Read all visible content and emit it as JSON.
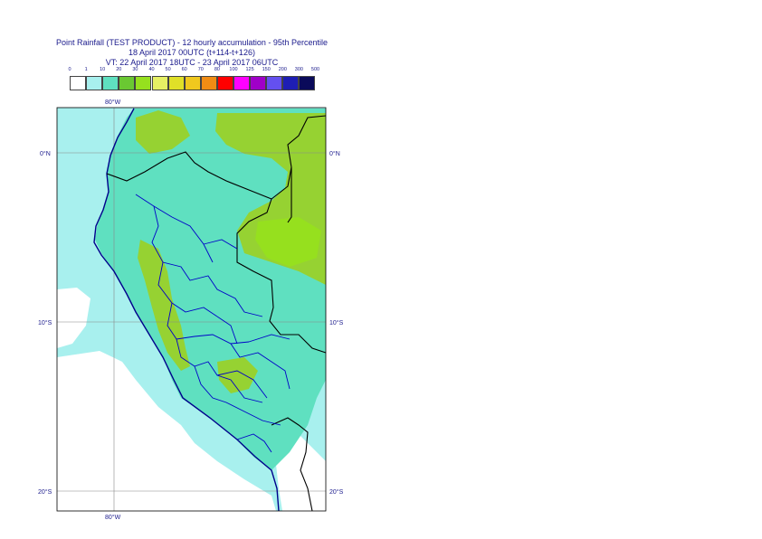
{
  "title": {
    "line1": "Point Rainfall (TEST PRODUCT) - 12 hourly accumulation - 95th Percentile",
    "line2": "18 April 2017 00UTC (t+114-t+126)",
    "line3": "VT: 22 April 2017 18UTC - 23 April 2017 06UTC"
  },
  "legend": {
    "labels": [
      "0",
      "1",
      "10",
      "20",
      "30",
      "40",
      "50",
      "60",
      "70",
      "80",
      "100",
      "125",
      "150",
      "200",
      "300",
      "500"
    ],
    "colors": [
      "#ffffff",
      "#a8f0ee",
      "#5fe0c0",
      "#6ac832",
      "#96e01e",
      "#e6f064",
      "#e0e028",
      "#f0c81e",
      "#f08c14",
      "#ff0000",
      "#ff00ff",
      "#a000c8",
      "#6450f0",
      "#1e1eb4",
      "#0a0a5a"
    ]
  },
  "map": {
    "lon_labels": [
      "80°W",
      "80°W"
    ],
    "lat_labels_left": [
      "0°N",
      "10°S",
      "20°S"
    ],
    "lat_labels_right": [
      "0°N",
      "10°S",
      "20°S"
    ],
    "colors": {
      "ocean_light": "#a8f0ee",
      "ocean_white": "#ffffff",
      "land_teal": "#5fe0c0",
      "land_green": "#96d232",
      "land_lime": "#96e01e",
      "grid": "#888888",
      "country_border": "#000000",
      "admin_border": "#0000c8",
      "coast": "#00008c"
    }
  }
}
